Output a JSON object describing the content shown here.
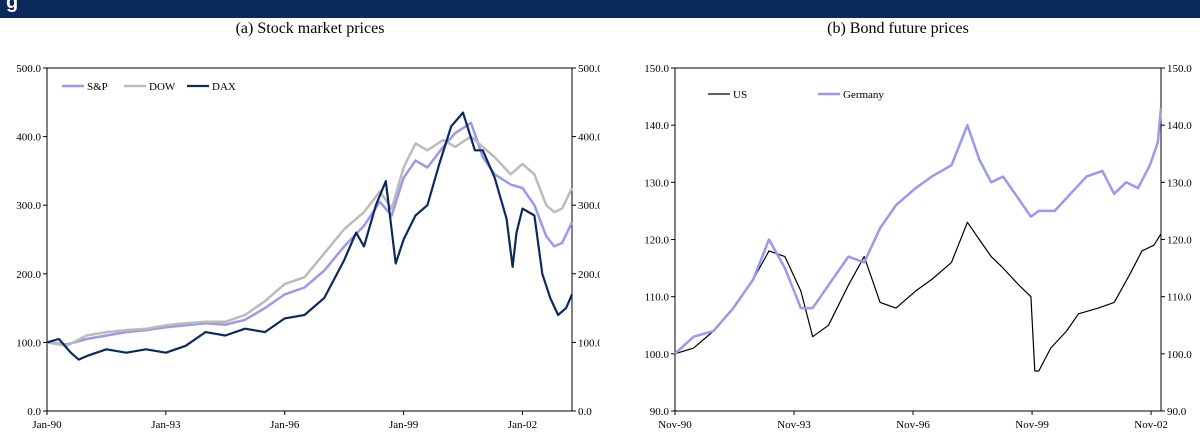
{
  "header": {
    "figure_title": "g"
  },
  "chart_data": [
    {
      "type": "line",
      "title": "(a) Stock market prices",
      "xlabel": "",
      "ylabel": "",
      "ylim": [
        0,
        500
      ],
      "y_ticks": [
        "0.0",
        "100.0",
        "200.0",
        "300.0",
        "400.0",
        "500.0"
      ],
      "x_ticks": [
        "Jan-90",
        "Jan-93",
        "Jan-96",
        "Jan-99",
        "Jan-02"
      ],
      "x_range": [
        1990.0,
        2003.25
      ],
      "grid": false,
      "legend_position": "top-left",
      "series": [
        {
          "name": "S&P",
          "color": "#9999ee",
          "x": [
            1990.0,
            1990.5,
            1991.0,
            1991.5,
            1992.0,
            1992.5,
            1993.0,
            1993.5,
            1994.0,
            1994.5,
            1995.0,
            1995.5,
            1996.0,
            1996.5,
            1997.0,
            1997.5,
            1998.0,
            1998.4,
            1998.7,
            1999.0,
            1999.3,
            1999.6,
            2000.0,
            2000.3,
            2000.7,
            2001.0,
            2001.3,
            2001.7,
            2002.0,
            2002.3,
            2002.6,
            2002.8,
            2003.0,
            2003.25
          ],
          "values": [
            100,
            97,
            105,
            110,
            115,
            118,
            122,
            125,
            128,
            126,
            133,
            150,
            170,
            180,
            205,
            240,
            270,
            305,
            285,
            340,
            365,
            355,
            385,
            405,
            420,
            370,
            345,
            330,
            325,
            300,
            255,
            240,
            245,
            275
          ]
        },
        {
          "name": "DOW",
          "color": "#bbbbbb",
          "x": [
            1990.0,
            1990.5,
            1991.0,
            1991.5,
            1992.0,
            1992.5,
            1993.0,
            1993.5,
            1994.0,
            1994.5,
            1995.0,
            1995.5,
            1996.0,
            1996.5,
            1997.0,
            1997.5,
            1998.0,
            1998.4,
            1998.7,
            1999.0,
            1999.3,
            1999.6,
            2000.0,
            2000.3,
            2000.7,
            2001.0,
            2001.3,
            2001.7,
            2002.0,
            2002.3,
            2002.6,
            2002.8,
            2003.0,
            2003.25
          ],
          "values": [
            100,
            95,
            110,
            115,
            118,
            120,
            125,
            128,
            130,
            130,
            140,
            160,
            185,
            195,
            230,
            265,
            290,
            320,
            295,
            355,
            390,
            380,
            395,
            385,
            400,
            385,
            370,
            345,
            360,
            345,
            300,
            290,
            295,
            325
          ]
        },
        {
          "name": "DAX",
          "color": "#0b2a5c",
          "x": [
            1990.0,
            1990.3,
            1990.6,
            1990.8,
            1991.0,
            1991.5,
            1992.0,
            1992.5,
            1993.0,
            1993.5,
            1994.0,
            1994.5,
            1995.0,
            1995.5,
            1996.0,
            1996.5,
            1997.0,
            1997.5,
            1997.8,
            1998.0,
            1998.3,
            1998.55,
            1998.8,
            1999.0,
            1999.3,
            1999.6,
            1999.9,
            2000.2,
            2000.5,
            2000.8,
            2001.0,
            2001.3,
            2001.6,
            2001.75,
            2001.85,
            2002.0,
            2002.3,
            2002.5,
            2002.7,
            2002.9,
            2003.1,
            2003.25
          ],
          "values": [
            100,
            105,
            85,
            75,
            80,
            90,
            85,
            90,
            85,
            95,
            115,
            110,
            120,
            115,
            135,
            140,
            165,
            220,
            260,
            240,
            300,
            335,
            215,
            250,
            285,
            300,
            360,
            415,
            435,
            380,
            380,
            340,
            280,
            210,
            260,
            295,
            285,
            200,
            165,
            140,
            150,
            170
          ]
        }
      ]
    },
    {
      "type": "line",
      "title": "(b) Bond future prices",
      "xlabel": "",
      "ylabel": "",
      "ylim": [
        90,
        150
      ],
      "y_ticks": [
        "90.0",
        "100.0",
        "110.0",
        "120.0",
        "130.0",
        "140.0",
        "150.0"
      ],
      "x_ticks": [
        "Nov-90",
        "Nov-93",
        "Nov-96",
        "Nov-99",
        "Nov-02"
      ],
      "x_range": [
        1990.83,
        2003.08
      ],
      "grid": false,
      "legend_position": "top-left",
      "series": [
        {
          "name": "US",
          "color": "#000000",
          "x": [
            1990.83,
            1991.3,
            1991.8,
            1992.3,
            1992.8,
            1993.2,
            1993.6,
            1994.0,
            1994.3,
            1994.7,
            1995.2,
            1995.6,
            1996.0,
            1996.4,
            1996.9,
            1997.3,
            1997.8,
            1998.2,
            1998.5,
            1998.8,
            1999.1,
            1999.5,
            1999.8,
            1999.9,
            2000.0,
            2000.3,
            2000.7,
            2001.0,
            2001.5,
            2001.9,
            2002.3,
            2002.6,
            2002.9,
            2003.08
          ],
          "values": [
            100,
            101,
            104,
            108,
            113,
            118,
            117,
            111,
            103,
            105,
            112,
            117,
            109,
            108,
            111,
            113,
            116,
            123,
            120,
            117,
            115,
            112,
            110,
            97,
            97,
            101,
            104,
            107,
            108,
            109,
            114,
            118,
            119,
            121
          ]
        },
        {
          "name": "Germany",
          "color": "#9999ee",
          "x": [
            1990.83,
            1991.3,
            1991.8,
            1992.3,
            1992.8,
            1993.2,
            1993.6,
            1994.0,
            1994.3,
            1994.7,
            1995.2,
            1995.6,
            1996.0,
            1996.4,
            1996.9,
            1997.3,
            1997.8,
            1998.2,
            1998.5,
            1998.8,
            1999.1,
            1999.5,
            1999.8,
            2000.0,
            2000.4,
            2000.8,
            2001.2,
            2001.6,
            2001.9,
            2002.2,
            2002.5,
            2002.8,
            2003.0,
            2003.08
          ],
          "values": [
            100,
            103,
            104,
            108,
            113,
            120,
            115,
            108,
            108,
            112,
            117,
            116,
            122,
            126,
            129,
            131,
            133,
            140,
            134,
            130,
            131,
            127,
            124,
            125,
            125,
            128,
            131,
            132,
            128,
            130,
            129,
            133,
            137,
            143
          ]
        }
      ]
    }
  ]
}
